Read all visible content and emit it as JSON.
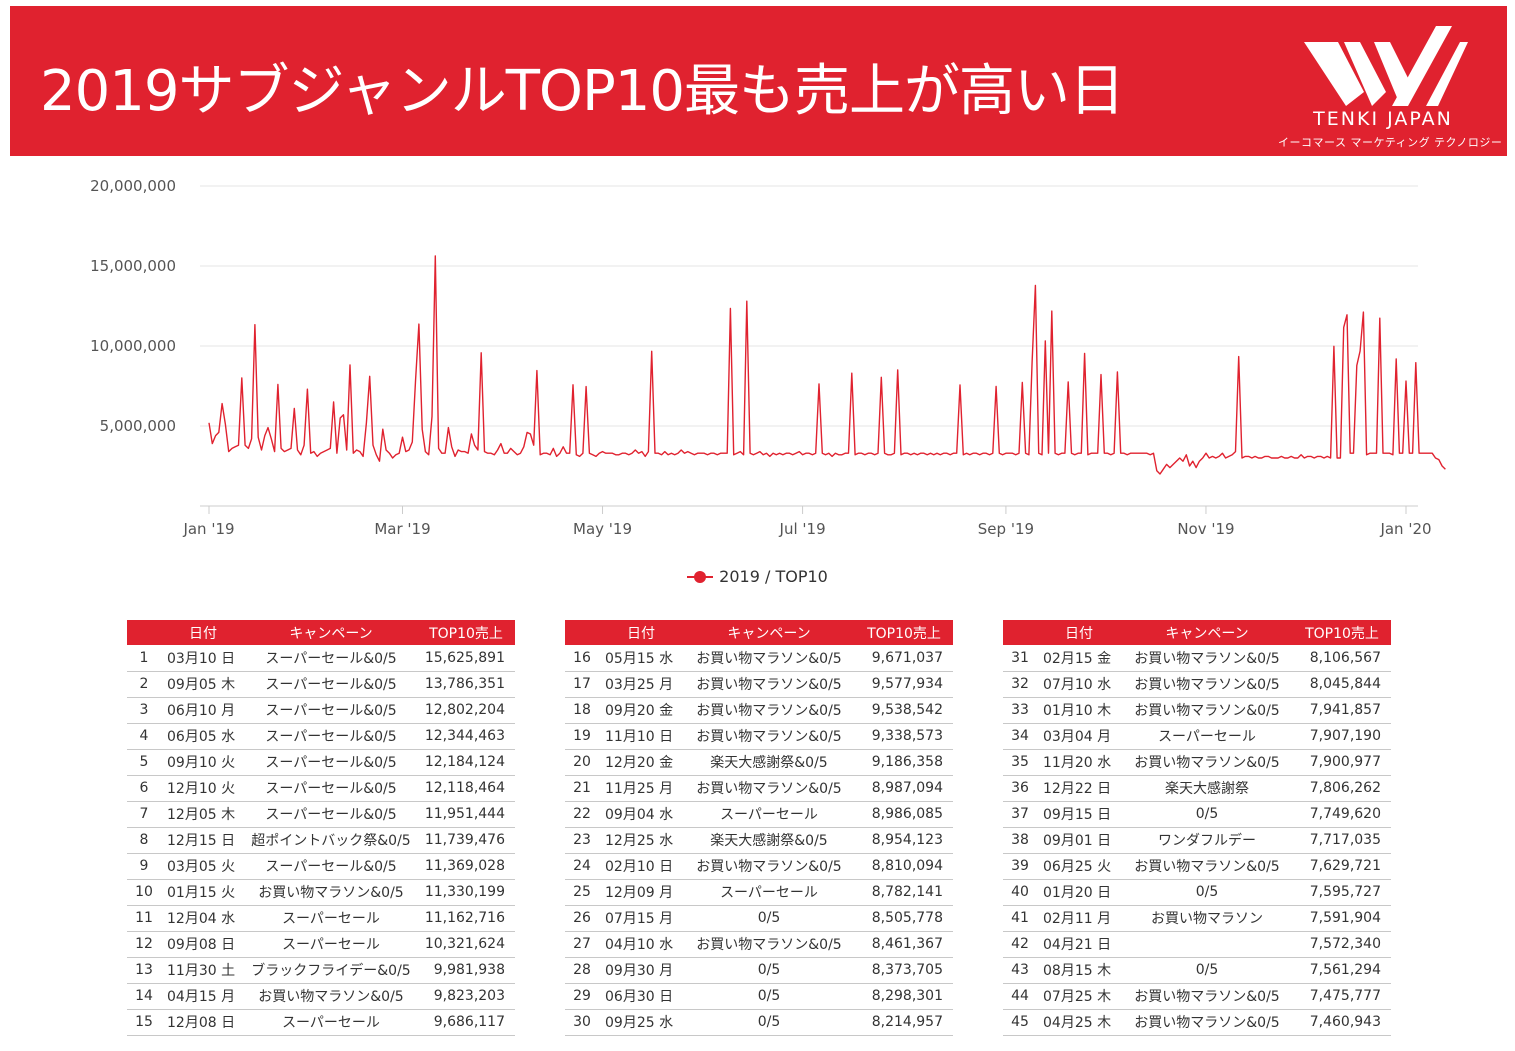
{
  "header": {
    "title": "2019サブジャンルTOP10最も売上が高い日",
    "logo_name": "TENKI JAPAN",
    "logo_sub": "イーコマース マーケティング テクノロジー",
    "brand_color": "#e0222f"
  },
  "chart_data": {
    "type": "line",
    "title": "",
    "xlabel": "",
    "ylabel": "",
    "x_tick_labels": [
      "Jan '19",
      "Mar '19",
      "May '19",
      "Jul '19",
      "Sep '19",
      "Nov '19",
      "Jan '20"
    ],
    "y_tick_labels": [
      "5,000,000",
      "10,000,000",
      "15,000,000",
      "20,000,000"
    ],
    "y_ticks": [
      5000000,
      10000000,
      15000000,
      20000000
    ],
    "ylim": [
      0,
      20000000
    ],
    "xlim": [
      "2019-01-01",
      "2020-01-01"
    ],
    "grid": true,
    "legend_position": "bottom-center",
    "series": [
      {
        "name": "2019 / TOP10",
        "color": "#e0222f",
        "x_start": "2019-01-01",
        "x_step": "1 day",
        "values": [
          5200000,
          3900000,
          4400000,
          4600000,
          6400000,
          5100000,
          3400000,
          3600000,
          3700000,
          3800000,
          8000000,
          3800000,
          3600000,
          4200000,
          11330199,
          4300000,
          3500000,
          4400000,
          4900000,
          4200000,
          3400000,
          7591904,
          3600000,
          3400000,
          3500000,
          3600000,
          6100000,
          3500000,
          3200000,
          3800000,
          7300000,
          3300000,
          3400000,
          3100000,
          3300000,
          3400000,
          3500000,
          3600000,
          6500000,
          3300000,
          5500000,
          5700000,
          3500000,
          8810094,
          3300000,
          3500000,
          3400000,
          3100000,
          5200000,
          8106567,
          3800000,
          3200000,
          2800000,
          4800000,
          3500000,
          3300000,
          3000000,
          3200000,
          3300000,
          4300000,
          3400000,
          3500000,
          4000000,
          7907190,
          11369028,
          4800000,
          3400000,
          3200000,
          5600000,
          15625891,
          3600000,
          3300000,
          3300000,
          4900000,
          3700000,
          3100000,
          3500000,
          3400000,
          3400000,
          3300000,
          4500000,
          3800000,
          3500000,
          9577934,
          3400000,
          3300000,
          3300000,
          3200000,
          3500000,
          3900000,
          3300000,
          3300000,
          3600000,
          3400000,
          3200000,
          3300000,
          3700000,
          4600000,
          4500000,
          3800000,
          8461367,
          3200000,
          3300000,
          3300000,
          3200000,
          3600000,
          3100000,
          3300000,
          3700000,
          3300000,
          3300000,
          7572340,
          3200000,
          3100000,
          3300000,
          7460943,
          3300000,
          3200000,
          3100000,
          3300000,
          3400000,
          3300000,
          3300000,
          3300000,
          3200000,
          3200000,
          3300000,
          3300000,
          3200000,
          3300000,
          3500000,
          3300000,
          3400000,
          3100000,
          3400000,
          9671037,
          3300000,
          3300000,
          3200000,
          3400000,
          3200000,
          3300000,
          3200000,
          3300000,
          3500000,
          3300000,
          3400000,
          3300000,
          3200000,
          3300000,
          3300000,
          3300000,
          3200000,
          3300000,
          3300000,
          3200000,
          3300000,
          3300000,
          3300000,
          12344463,
          3200000,
          3300000,
          3400000,
          3200000,
          12802204,
          3300000,
          3200000,
          3300000,
          3400000,
          3200000,
          3300000,
          3100000,
          3300000,
          3200000,
          3300000,
          3200000,
          3300000,
          3300000,
          3200000,
          3300000,
          3400000,
          3200000,
          3300000,
          3300000,
          3200000,
          3300000,
          7629721,
          3300000,
          3200000,
          3300000,
          3100000,
          3300000,
          3200000,
          3200000,
          3300000,
          3300000,
          8298301,
          3200000,
          3300000,
          3300000,
          3200000,
          3300000,
          3300000,
          3200000,
          3300000,
          8045844,
          3300000,
          3200000,
          3200000,
          3300000,
          8505778,
          3200000,
          3300000,
          3300000,
          3200000,
          3300000,
          3200000,
          3300000,
          3300000,
          3200000,
          3300000,
          3200000,
          3300000,
          3200000,
          3300000,
          3300000,
          3200000,
          3300000,
          3300000,
          7561294,
          3200000,
          3300000,
          3200000,
          3300000,
          3300000,
          3200000,
          3300000,
          3300000,
          3200000,
          3300000,
          7475777,
          3300000,
          3200000,
          3300000,
          3300000,
          3300000,
          3200000,
          3300000,
          7717035,
          3300000,
          3200000,
          8986085,
          13786351,
          3300000,
          3200000,
          10321624,
          3300000,
          12184124,
          3300000,
          3200000,
          3300000,
          3300000,
          7749620,
          3300000,
          3200000,
          3300000,
          3300000,
          9538542,
          3200000,
          3300000,
          3300000,
          3300000,
          8214957,
          3300000,
          3300000,
          3200000,
          3300000,
          8373705,
          3300000,
          3300000,
          3200000,
          3300000,
          3300000,
          3300000,
          3300000,
          3300000,
          3300000,
          3200000,
          3300000,
          2200000,
          2000000,
          2300000,
          2600000,
          2400000,
          2600000,
          2800000,
          3000000,
          2800000,
          3200000,
          2500000,
          2800000,
          2400000,
          2800000,
          3000000,
          3300000,
          3000000,
          3100000,
          3000000,
          3100000,
          3300000,
          3000000,
          3100000,
          3200000,
          3400000,
          9338573,
          3000000,
          3100000,
          3100000,
          3000000,
          3100000,
          3000000,
          3000000,
          3100000,
          3100000,
          3000000,
          3000000,
          3000000,
          3100000,
          3000000,
          3000000,
          3100000,
          3000000,
          3000000,
          3200000,
          3000000,
          3100000,
          3100000,
          3000000,
          3100000,
          3100000,
          3000000,
          3100000,
          3000000,
          9981938,
          3000000,
          3000000,
          11162716,
          11951444,
          3300000,
          3300000,
          8782141,
          9686117,
          12118464,
          3200000,
          3300000,
          3300000,
          3300000,
          11739476,
          3300000,
          3300000,
          3300000,
          3200000,
          9186358,
          3300000,
          3300000,
          7806262,
          3300000,
          3300000,
          8954123,
          3300000,
          3300000,
          3300000,
          3300000,
          3300000,
          3000000,
          2900000,
          2500000,
          2300000
        ]
      }
    ]
  },
  "tables": [
    {
      "headers": [
        "",
        "日付",
        "キャンペーン",
        "TOP10売上"
      ],
      "rows": [
        [
          "1",
          "03月10 日",
          "スーパーセール&0/5",
          "15,625,891"
        ],
        [
          "2",
          "09月05 木",
          "スーパーセール&0/5",
          "13,786,351"
        ],
        [
          "3",
          "06月10 月",
          "スーパーセール&0/5",
          "12,802,204"
        ],
        [
          "4",
          "06月05 水",
          "スーパーセール&0/5",
          "12,344,463"
        ],
        [
          "5",
          "09月10 火",
          "スーパーセール&0/5",
          "12,184,124"
        ],
        [
          "6",
          "12月10 火",
          "スーパーセール&0/5",
          "12,118,464"
        ],
        [
          "7",
          "12月05 木",
          "スーパーセール&0/5",
          "11,951,444"
        ],
        [
          "8",
          "12月15 日",
          "超ポイントバック祭&0/5",
          "11,739,476"
        ],
        [
          "9",
          "03月05 火",
          "スーパーセール&0/5",
          "11,369,028"
        ],
        [
          "10",
          "01月15 火",
          "お買い物マラソン&0/5",
          "11,330,199"
        ],
        [
          "11",
          "12月04 水",
          "スーパーセール",
          "11,162,716"
        ],
        [
          "12",
          "09月08 日",
          "スーパーセール",
          "10,321,624"
        ],
        [
          "13",
          "11月30 土",
          "ブラックフライデー&0/5",
          "9,981,938"
        ],
        [
          "14",
          "04月15 月",
          "お買い物マラソン&0/5",
          "9,823,203"
        ],
        [
          "15",
          "12月08 日",
          "スーパーセール",
          "9,686,117"
        ]
      ]
    },
    {
      "headers": [
        "",
        "日付",
        "キャンペーン",
        "TOP10売上"
      ],
      "rows": [
        [
          "16",
          "05月15 水",
          "お買い物マラソン&0/5",
          "9,671,037"
        ],
        [
          "17",
          "03月25 月",
          "お買い物マラソン&0/5",
          "9,577,934"
        ],
        [
          "18",
          "09月20 金",
          "お買い物マラソン&0/5",
          "9,538,542"
        ],
        [
          "19",
          "11月10 日",
          "お買い物マラソン&0/5",
          "9,338,573"
        ],
        [
          "20",
          "12月20 金",
          "楽天大感謝祭&0/5",
          "9,186,358"
        ],
        [
          "21",
          "11月25 月",
          "お買い物マラソン&0/5",
          "8,987,094"
        ],
        [
          "22",
          "09月04 水",
          "スーパーセール",
          "8,986,085"
        ],
        [
          "23",
          "12月25 水",
          "楽天大感謝祭&0/5",
          "8,954,123"
        ],
        [
          "24",
          "02月10 日",
          "お買い物マラソン&0/5",
          "8,810,094"
        ],
        [
          "25",
          "12月09 月",
          "スーパーセール",
          "8,782,141"
        ],
        [
          "26",
          "07月15 月",
          "0/5",
          "8,505,778"
        ],
        [
          "27",
          "04月10 水",
          "お買い物マラソン&0/5",
          "8,461,367"
        ],
        [
          "28",
          "09月30 月",
          "0/5",
          "8,373,705"
        ],
        [
          "29",
          "06月30 日",
          "0/5",
          "8,298,301"
        ],
        [
          "30",
          "09月25 水",
          "0/5",
          "8,214,957"
        ]
      ]
    },
    {
      "headers": [
        "",
        "日付",
        "キャンペーン",
        "TOP10売上"
      ],
      "rows": [
        [
          "31",
          "02月15 金",
          "お買い物マラソン&0/5",
          "8,106,567"
        ],
        [
          "32",
          "07月10 水",
          "お買い物マラソン&0/5",
          "8,045,844"
        ],
        [
          "33",
          "01月10 木",
          "お買い物マラソン&0/5",
          "7,941,857"
        ],
        [
          "34",
          "03月04 月",
          "スーパーセール",
          "7,907,190"
        ],
        [
          "35",
          "11月20 水",
          "お買い物マラソン&0/5",
          "7,900,977"
        ],
        [
          "36",
          "12月22 日",
          "楽天大感謝祭",
          "7,806,262"
        ],
        [
          "37",
          "09月15 日",
          "0/5",
          "7,749,620"
        ],
        [
          "38",
          "09月01 日",
          "ワンダフルデー",
          "7,717,035"
        ],
        [
          "39",
          "06月25 火",
          "お買い物マラソン&0/5",
          "7,629,721"
        ],
        [
          "40",
          "01月20 日",
          "0/5",
          "7,595,727"
        ],
        [
          "41",
          "02月11 月",
          "お買い物マラソン",
          "7,591,904"
        ],
        [
          "42",
          "04月21 日",
          "",
          "7,572,340"
        ],
        [
          "43",
          "08月15 木",
          "0/5",
          "7,561,294"
        ],
        [
          "44",
          "07月25 木",
          "お買い物マラソン&0/5",
          "7,475,777"
        ],
        [
          "45",
          "04月25 木",
          "お買い物マラソン&0/5",
          "7,460,943"
        ]
      ]
    }
  ]
}
